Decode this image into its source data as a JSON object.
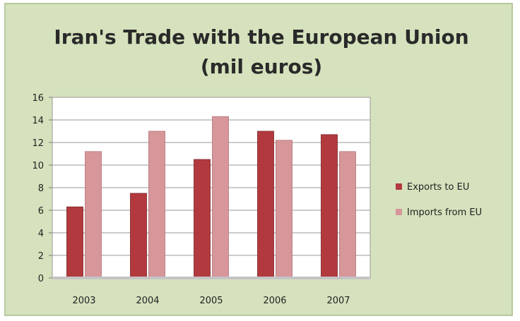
{
  "chart_data": {
    "type": "bar",
    "title": "Iran's Trade with the European Union",
    "subtitle": "(mil euros)",
    "categories": [
      "2003",
      "2004",
      "2005",
      "2006",
      "2007"
    ],
    "series": [
      {
        "name": "Exports to EU",
        "color": "#b23a3e",
        "values": [
          6.3,
          7.5,
          10.5,
          13.0,
          12.7
        ]
      },
      {
        "name": "Imports from EU",
        "color": "#d6969a",
        "values": [
          11.2,
          13.0,
          14.3,
          12.2,
          11.2
        ]
      }
    ],
    "ylim": [
      0,
      16
    ],
    "yticks": [
      "0",
      "2",
      "4",
      "6",
      "8",
      "10",
      "12",
      "14",
      "16"
    ],
    "grid": true,
    "legend_position": "right",
    "plot_background": "#ffffff",
    "frame_background": "#d5e2bd"
  }
}
